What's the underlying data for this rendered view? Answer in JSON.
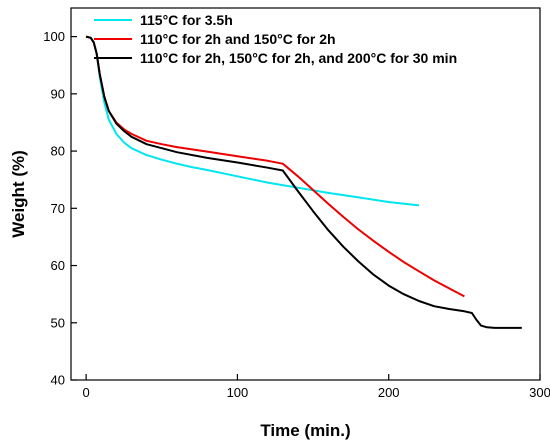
{
  "chart_data": {
    "type": "line",
    "xlabel": "Time (min.)",
    "ylabel": "Weight (%)",
    "xlim": [
      -10,
      300
    ],
    "ylim": [
      40,
      105
    ],
    "xticks": [
      0,
      100,
      200,
      300
    ],
    "yticks": [
      40,
      50,
      60,
      70,
      80,
      90,
      100
    ],
    "grid": false,
    "legend_position": "top-left",
    "series": [
      {
        "name": "115°C for 3.5h",
        "color": "#00e5ee",
        "x": [
          0,
          3,
          5,
          7,
          9,
          12,
          15,
          20,
          25,
          30,
          40,
          50,
          60,
          70,
          80,
          100,
          120,
          140,
          160,
          180,
          200,
          220
        ],
        "y": [
          100,
          99.8,
          99,
          97,
          93,
          88.5,
          85.5,
          83,
          81.5,
          80.5,
          79.3,
          78.5,
          77.8,
          77.2,
          76.7,
          75.6,
          74.5,
          73.6,
          72.7,
          71.9,
          71.1,
          70.5
        ]
      },
      {
        "name": "110°C for 2h and 150°C for 2h",
        "color": "#ee0000",
        "x": [
          0,
          3,
          5,
          7,
          9,
          12,
          15,
          20,
          25,
          30,
          40,
          50,
          60,
          80,
          100,
          120,
          130,
          140,
          150,
          160,
          170,
          180,
          190,
          200,
          210,
          220,
          230,
          240,
          250
        ],
        "y": [
          100,
          99.8,
          99,
          97,
          93.5,
          89.5,
          87,
          85,
          83.8,
          83,
          81.8,
          81.2,
          80.7,
          79.9,
          79.1,
          78.3,
          77.8,
          75.6,
          73.2,
          70.8,
          68.5,
          66.3,
          64.3,
          62.4,
          60.6,
          59,
          57.4,
          56,
          54.6
        ]
      },
      {
        "name": "110°C for 2h, 150°C for 2h, and 200°C for 30 min",
        "color": "#000000",
        "x": [
          0,
          3,
          5,
          7,
          9,
          12,
          15,
          20,
          25,
          30,
          40,
          50,
          60,
          80,
          100,
          120,
          130,
          140,
          150,
          160,
          170,
          180,
          190,
          200,
          210,
          220,
          230,
          240,
          250,
          255,
          258,
          261,
          265,
          270,
          288
        ],
        "y": [
          100,
          99.8,
          99,
          97,
          93.5,
          89.5,
          87,
          84.8,
          83.5,
          82.5,
          81.2,
          80.5,
          79.8,
          78.8,
          78,
          77.1,
          76.6,
          73,
          69.5,
          66.2,
          63.3,
          60.7,
          58.4,
          56.5,
          55,
          53.8,
          52.9,
          52.4,
          52,
          51.7,
          50.5,
          49.5,
          49.2,
          49.1,
          49.1
        ]
      }
    ]
  }
}
